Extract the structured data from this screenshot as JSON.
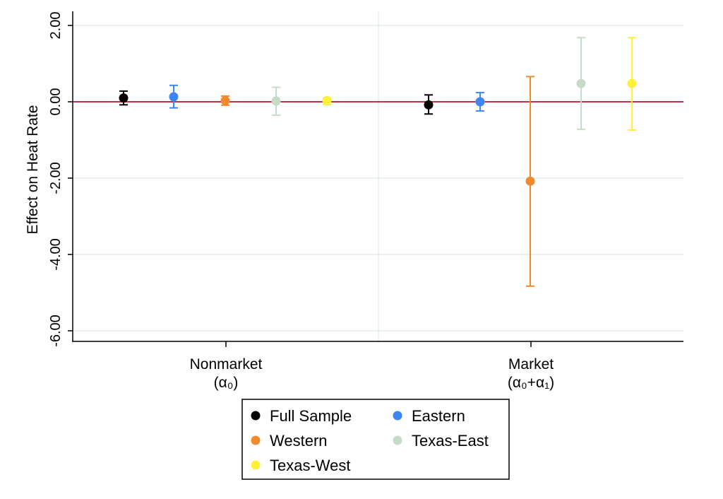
{
  "chart_data": {
    "type": "scatter",
    "ylabel": "Effect on Heat Rate",
    "xlabel": "",
    "ylim": [
      -6.3,
      2.0
    ],
    "yticks": [
      {
        "value": 2,
        "label": "2.00"
      },
      {
        "value": 0,
        "label": "0.00"
      },
      {
        "value": -2,
        "label": "-2.00"
      },
      {
        "value": -4,
        "label": "-4.00"
      },
      {
        "value": -6,
        "label": "-6.00"
      }
    ],
    "grid": true,
    "reference_line": {
      "y": 0,
      "color": "#c0304a"
    },
    "groups": [
      {
        "label_line1": "Nonmarket",
        "label_line2": "(α₀)"
      },
      {
        "label_line1": "Market",
        "label_line2": "(α₀+α₁)"
      }
    ],
    "series": [
      {
        "name": "Full Sample",
        "color": "#000000",
        "points": [
          {
            "estimate": 0.1,
            "ci_low": -0.08,
            "ci_high": 0.28
          },
          {
            "estimate": -0.08,
            "ci_low": -0.32,
            "ci_high": 0.18
          }
        ]
      },
      {
        "name": "Eastern",
        "color": "#3d85f0",
        "points": [
          {
            "estimate": 0.13,
            "ci_low": -0.16,
            "ci_high": 0.43
          },
          {
            "estimate": 0.0,
            "ci_low": -0.24,
            "ci_high": 0.24
          }
        ]
      },
      {
        "name": "Western",
        "color": "#ef8a2e",
        "points": [
          {
            "estimate": 0.03,
            "ci_low": -0.09,
            "ci_high": 0.15
          },
          {
            "estimate": -2.08,
            "ci_low": -4.83,
            "ci_high": 0.66
          }
        ]
      },
      {
        "name": "Texas-East",
        "color": "#c5dcc6",
        "points": [
          {
            "estimate": 0.02,
            "ci_low": -0.35,
            "ci_high": 0.38
          },
          {
            "estimate": 0.48,
            "ci_low": -0.72,
            "ci_high": 1.68
          }
        ]
      },
      {
        "name": "Texas-West",
        "color": "#fff03a",
        "points": [
          {
            "estimate": 0.03,
            "ci_low": -0.07,
            "ci_high": 0.1
          },
          {
            "estimate": 0.48,
            "ci_low": -0.74,
            "ci_high": 1.68
          }
        ]
      }
    ],
    "legend": {
      "position": "bottom-center",
      "columns": 2
    }
  }
}
